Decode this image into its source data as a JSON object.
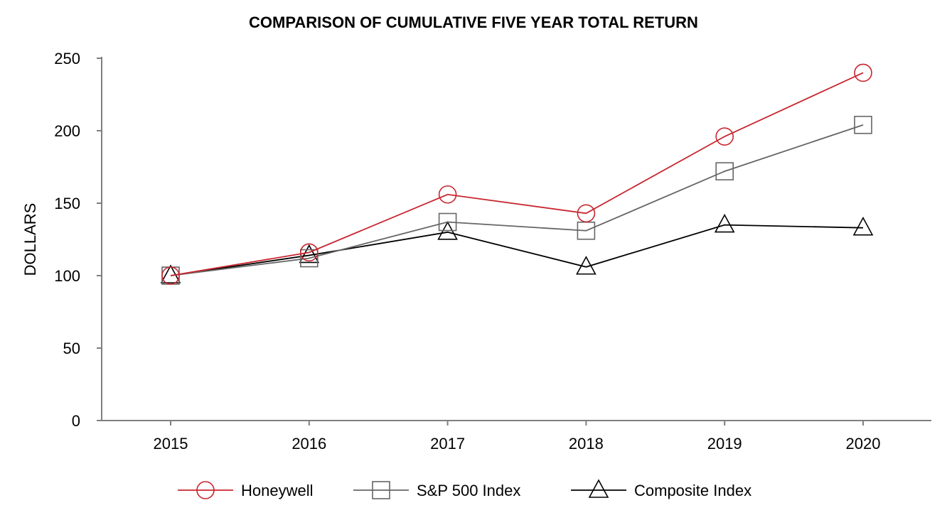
{
  "chart_data": {
    "type": "line",
    "title": "COMPARISON OF CUMULATIVE FIVE YEAR TOTAL RETURN",
    "xlabel": "",
    "ylabel": "DOLLARS",
    "categories": [
      "2015",
      "2016",
      "2017",
      "2018",
      "2019",
      "2020"
    ],
    "ylim": [
      0,
      250
    ],
    "yticks": [
      "0",
      "50",
      "100",
      "150",
      "200",
      "250"
    ],
    "grid": false,
    "legend_position": "bottom",
    "series": [
      {
        "name": "Honeywell",
        "marker": "circle",
        "color": "#c8262f",
        "values": [
          100,
          116,
          156,
          143,
          196,
          240
        ]
      },
      {
        "name": "S&P 500 Index",
        "marker": "square",
        "color": "#666666",
        "values": [
          100,
          112,
          137,
          131,
          172,
          204
        ]
      },
      {
        "name": "Composite Index",
        "marker": "triangle",
        "color": "#000000",
        "values": [
          100,
          114,
          130,
          106,
          135,
          133
        ]
      }
    ]
  }
}
